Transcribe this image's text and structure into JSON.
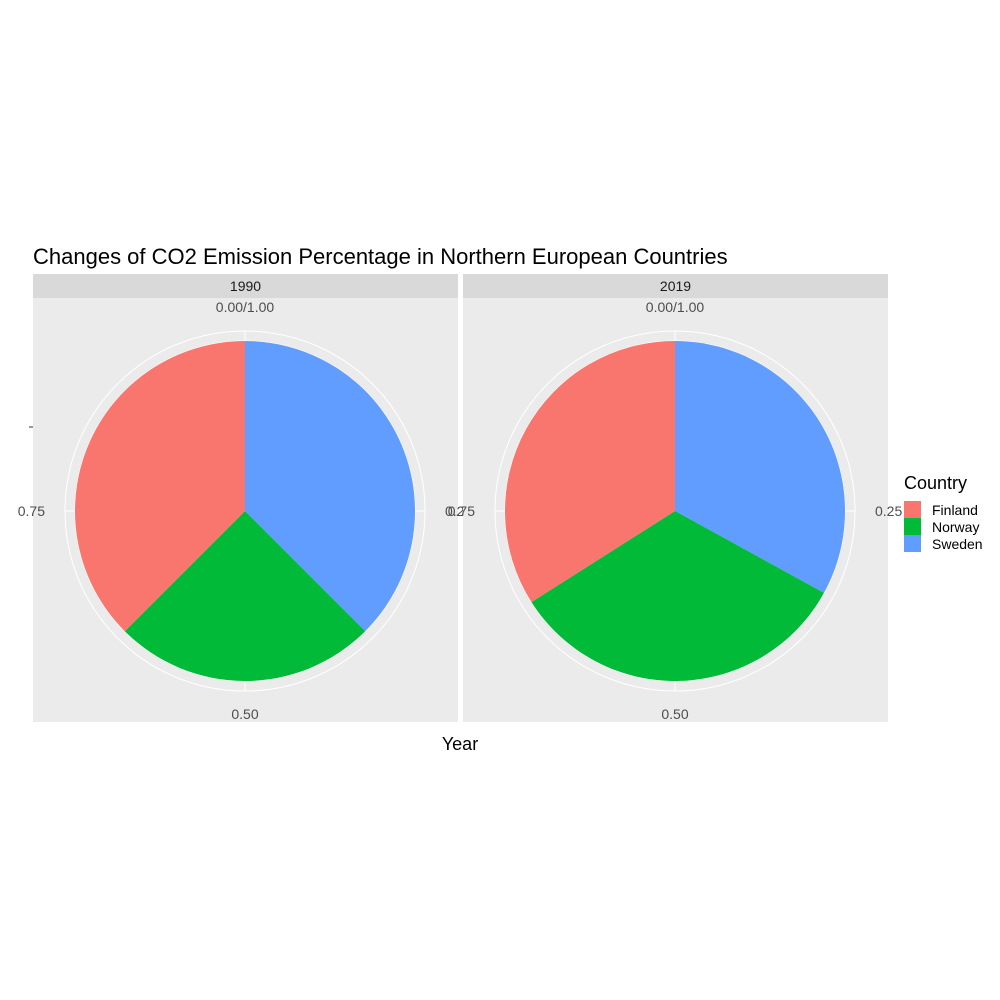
{
  "chart_data": {
    "type": "pie",
    "title": "Changes of CO2 Emission Percentage in Northern European Countries",
    "xlabel": "Year",
    "ylabel": "",
    "legend": {
      "title": "Country",
      "placement": "right",
      "entries": [
        "Finland",
        "Norway",
        "Sweden"
      ]
    },
    "colors": {
      "Finland": "#F8766D",
      "Norway": "#00BA38",
      "Sweden": "#619CFF"
    },
    "angle_ticks": [
      {
        "value": 0,
        "label": "0.00/1.00"
      },
      {
        "value": 0.25,
        "label": "0.25"
      },
      {
        "value": 0.5,
        "label": "0.50"
      },
      {
        "value": 0.75,
        "label": "0.75"
      }
    ],
    "panel_background": "#EBEBEB",
    "strip_background": "#D9D9D9",
    "grid": true,
    "panels": [
      {
        "label": "1990",
        "slices": [
          {
            "name": "Sweden",
            "value": 0.375
          },
          {
            "name": "Norway",
            "value": 0.25
          },
          {
            "name": "Finland",
            "value": 0.375
          }
        ]
      },
      {
        "label": "2019",
        "slices": [
          {
            "name": "Sweden",
            "value": 0.33
          },
          {
            "name": "Norway",
            "value": 0.33
          },
          {
            "name": "Finland",
            "value": 0.34
          }
        ]
      }
    ]
  }
}
